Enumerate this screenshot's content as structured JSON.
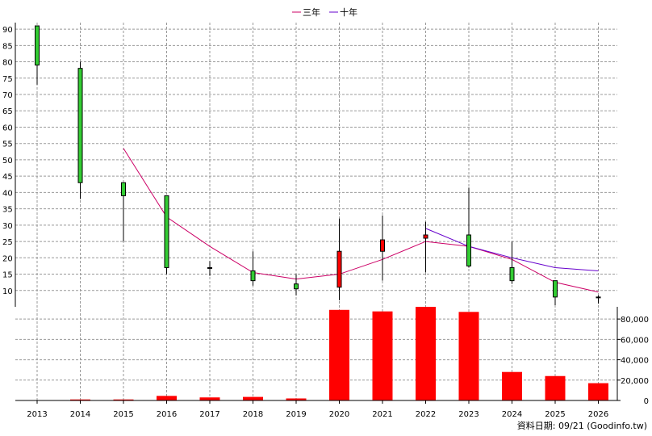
{
  "chart_data": [
    {
      "type": "candlestick",
      "legend": [
        {
          "name": "三年",
          "color": "#cc0066"
        },
        {
          "name": "十年",
          "color": "#6600cc"
        }
      ],
      "x": [
        "2013",
        "2014",
        "2015",
        "2016",
        "2017",
        "2018",
        "2019",
        "2020",
        "2021",
        "2022",
        "2023",
        "2024",
        "2025",
        "2026"
      ],
      "ylim": [
        5,
        92
      ],
      "yticks": [
        10,
        15,
        20,
        25,
        30,
        35,
        40,
        45,
        50,
        55,
        60,
        65,
        70,
        75,
        80,
        85,
        90
      ],
      "colors": {
        "up": "#ff0000",
        "down": "#33cc33"
      },
      "candles": [
        {
          "x": "2013",
          "open": 91,
          "close": 79,
          "high": 91,
          "low": 73
        },
        {
          "x": "2014",
          "open": 78,
          "close": 43,
          "high": 80,
          "low": 38
        },
        {
          "x": "2015",
          "open": 43,
          "close": 39,
          "high": 43,
          "low": 25
        },
        {
          "x": "2016",
          "open": 39,
          "close": 17,
          "high": 39,
          "low": 15
        },
        {
          "x": "2017",
          "open": 17,
          "close": 17,
          "high": 19,
          "low": 14.5
        },
        {
          "x": "2018",
          "open": 16,
          "close": 13,
          "high": 22,
          "low": 11.5
        },
        {
          "x": "2019",
          "open": 12,
          "close": 10.5,
          "high": 15,
          "low": 8.5
        },
        {
          "x": "2020",
          "open": 11,
          "close": 22,
          "high": 32,
          "low": 7
        },
        {
          "x": "2021",
          "open": 22,
          "close": 25.5,
          "high": 33,
          "low": 13
        },
        {
          "x": "2022",
          "open": 26,
          "close": 27,
          "high": 31,
          "low": 15.5
        },
        {
          "x": "2023",
          "open": 27,
          "close": 17.5,
          "high": 41.5,
          "low": 17
        },
        {
          "x": "2024",
          "open": 17,
          "close": 13,
          "high": 25,
          "low": 12
        },
        {
          "x": "2025",
          "open": 13,
          "close": 8,
          "high": 13,
          "low": 5.5
        },
        {
          "x": "2026",
          "open": 8,
          "close": 8,
          "high": 8.5,
          "low": 6
        }
      ],
      "series": [
        {
          "name": "三年",
          "color": "#cc0066",
          "points": [
            {
              "x": "2015",
              "y": 53.5
            },
            {
              "x": "2016",
              "y": 32.5
            },
            {
              "x": "2017",
              "y": 23.5
            },
            {
              "x": "2018",
              "y": 15.5
            },
            {
              "x": "2019",
              "y": 13.5
            },
            {
              "x": "2020",
              "y": 15
            },
            {
              "x": "2021",
              "y": 19.5
            },
            {
              "x": "2022",
              "y": 25
            },
            {
              "x": "2023",
              "y": 23.5
            },
            {
              "x": "2024",
              "y": 19.5
            },
            {
              "x": "2025",
              "y": 12.5
            },
            {
              "x": "2026",
              "y": 9.5
            }
          ]
        },
        {
          "name": "十年",
          "color": "#6600cc",
          "points": [
            {
              "x": "2022",
              "y": 29
            },
            {
              "x": "2023",
              "y": 23.5
            },
            {
              "x": "2024",
              "y": 20
            },
            {
              "x": "2025",
              "y": 17
            },
            {
              "x": "2026",
              "y": 16
            }
          ]
        }
      ]
    },
    {
      "type": "bar",
      "x": [
        "2013",
        "2014",
        "2015",
        "2016",
        "2017",
        "2018",
        "2019",
        "2020",
        "2021",
        "2022",
        "2023",
        "2024",
        "2025",
        "2026"
      ],
      "values": [
        0,
        1000,
        1000,
        4500,
        3000,
        3500,
        2000,
        89000,
        87500,
        92000,
        87000,
        28000,
        24000,
        17000
      ],
      "color": "#ff0000",
      "ylim": [
        0,
        92000
      ],
      "yticks": [
        0,
        20000,
        40000,
        60000,
        80000
      ],
      "ytick_labels": [
        "0",
        "20,000",
        "40,000",
        "60,000",
        "80,000"
      ]
    }
  ],
  "source_label": "資料日期: 09/21 (Goodinfo.tw)"
}
